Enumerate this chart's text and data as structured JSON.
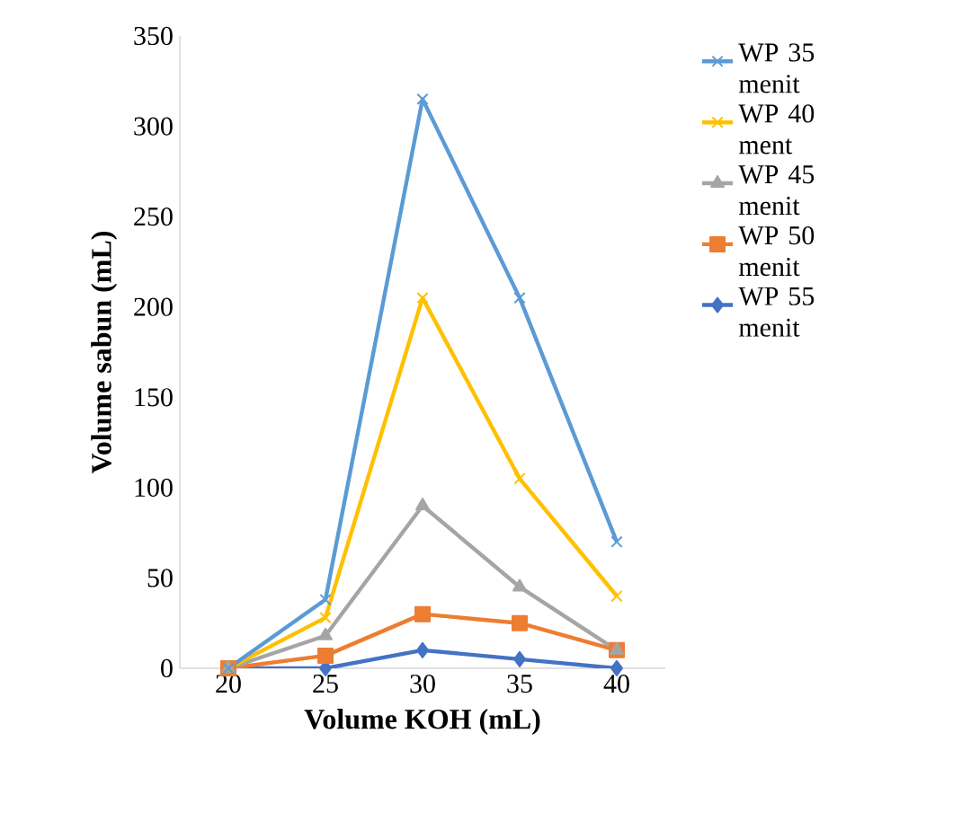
{
  "chart_data": {
    "type": "line",
    "xlabel": "Volume KOH (mL)",
    "ylabel": "Volume sabun (mL)",
    "categories": [
      "20",
      "25",
      "30",
      "35",
      "40"
    ],
    "series": [
      {
        "name": "WP 35 menit",
        "color": "#5b9bd5",
        "marker": "cross",
        "values": [
          0,
          38,
          315,
          205,
          70
        ]
      },
      {
        "name": "WP 40 ment",
        "color": "#ffc000",
        "marker": "cross",
        "values": [
          0,
          28,
          205,
          105,
          40
        ]
      },
      {
        "name": "WP 45 menit",
        "color": "#a5a5a5",
        "marker": "triangle",
        "values": [
          0,
          18,
          90,
          45,
          10
        ]
      },
      {
        "name": "WP 50 menit",
        "color": "#ed7d31",
        "marker": "square",
        "values": [
          0,
          7,
          30,
          25,
          10
        ]
      },
      {
        "name": "WP 55 menit",
        "color": "#4472c4",
        "marker": "diamond",
        "values": [
          0,
          0,
          10,
          5,
          0
        ]
      }
    ],
    "ylim": [
      0,
      350
    ],
    "yticks": [
      0,
      50,
      100,
      150,
      200,
      250,
      300,
      350
    ],
    "legend": "right",
    "grid": false,
    "line_style": "solid"
  }
}
